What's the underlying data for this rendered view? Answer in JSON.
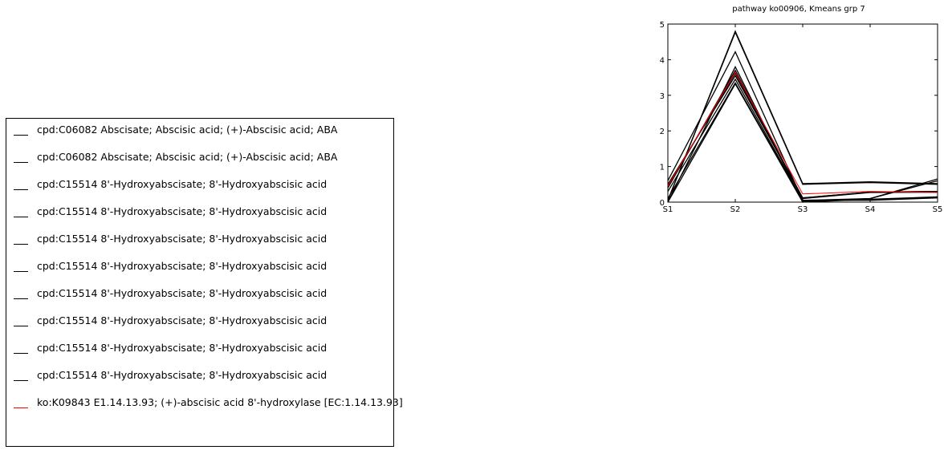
{
  "chart_data": {
    "type": "line",
    "title": "pathway ko00906, Kmeans grp 7",
    "x": [
      "S1",
      "S2",
      "S3",
      "S4",
      "S5"
    ],
    "ylim": [
      0,
      5
    ],
    "yticks": [
      "0",
      "1",
      "2",
      "3",
      "4",
      "5"
    ],
    "grid": false,
    "legend_placement": "outside-left",
    "series": [
      {
        "name": "cpd:C06082\tAbscisate; Abscisic acid; (+)-Abscisic acid; ABA",
        "color": "#000000",
        "values": [
          0.05,
          4.77,
          0.5,
          0.55,
          0.5
        ]
      },
      {
        "name": "cpd:C06082\tAbscisate; Abscisic acid; (+)-Abscisic acid; ABA",
        "color": "#000000",
        "values": [
          0.05,
          4.8,
          0.52,
          0.57,
          0.52
        ]
      },
      {
        "name": "cpd:C15514\t8'-Hydroxyabscisate; 8'-Hydroxyabscisic acid",
        "color": "#000000",
        "values": [
          0.6,
          4.22,
          0.05,
          0.1,
          0.65
        ]
      },
      {
        "name": "cpd:C15514\t8'-Hydroxyabscisate; 8'-Hydroxyabscisic acid",
        "color": "#000000",
        "values": [
          0.0,
          3.8,
          0.0,
          0.1,
          0.6
        ]
      },
      {
        "name": "cpd:C15514\t8'-Hydroxyabscisate; 8'-Hydroxyabscisic acid",
        "color": "#000000",
        "values": [
          0.4,
          3.7,
          0.1,
          0.27,
          0.28
        ]
      },
      {
        "name": "cpd:C15514\t8'-Hydroxyabscisate; 8'-Hydroxyabscisic acid",
        "color": "#000000",
        "values": [
          0.45,
          3.62,
          0.12,
          0.28,
          0.3
        ]
      },
      {
        "name": "cpd:C15514\t8'-Hydroxyabscisate; 8'-Hydroxyabscisic acid",
        "color": "#000000",
        "values": [
          0.5,
          3.55,
          0.12,
          0.28,
          0.3
        ]
      },
      {
        "name": "cpd:C15514\t8'-Hydroxyabscisate; 8'-Hydroxyabscisic acid",
        "color": "#000000",
        "values": [
          0.3,
          3.45,
          0.05,
          0.05,
          0.12
        ]
      },
      {
        "name": "cpd:C15514\t8'-Hydroxyabscisate; 8'-Hydroxyabscisic acid",
        "color": "#000000",
        "values": [
          0.0,
          3.32,
          0.0,
          0.08,
          0.15
        ]
      },
      {
        "name": "cpd:C15514\t8'-Hydroxyabscisate; 8'-Hydroxyabscisic acid",
        "color": "#000000",
        "values": [
          0.1,
          3.35,
          0.03,
          0.07,
          0.13
        ]
      },
      {
        "name": "ko:K09843\tE1.14.13.93; (+)-abscisic acid 8'-hydroxylase [EC:1.14.13.93]",
        "color": "#ff0000",
        "values": [
          0.45,
          3.65,
          0.23,
          0.3,
          0.27
        ]
      }
    ]
  }
}
